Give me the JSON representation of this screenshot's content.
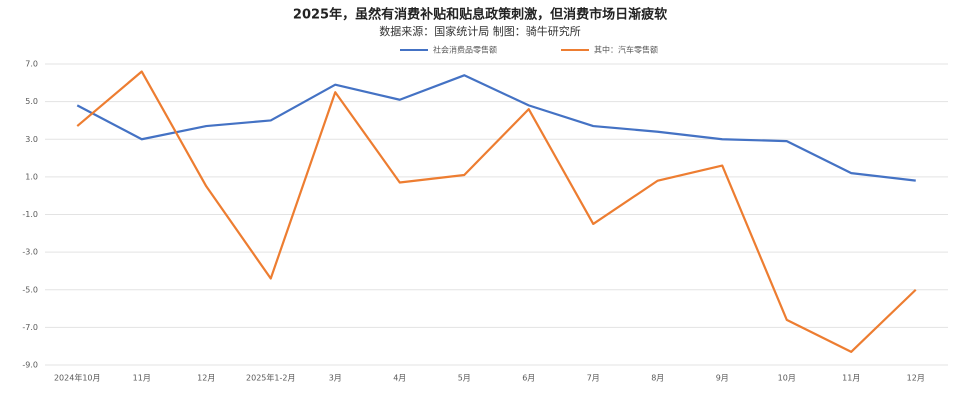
{
  "chart_data": {
    "type": "line",
    "title": "2025年，虽然有消费补贴和贴息政策刺激，但消费市场日渐疲软",
    "subtitle": "数据来源：国家统计局  制图：骑牛研究所",
    "categories": [
      "2024年10月",
      "11月",
      "12月",
      "2025年1-2月",
      "3月",
      "4月",
      "5月",
      "6月",
      "7月",
      "8月",
      "9月",
      "10月",
      "11月",
      "12月"
    ],
    "series": [
      {
        "name": "社会消费品零售额",
        "color": "#4472c4",
        "values": [
          4.8,
          3.0,
          3.7,
          4.0,
          5.9,
          5.1,
          6.4,
          4.8,
          3.7,
          3.4,
          3.0,
          2.9,
          1.2,
          0.8
        ]
      },
      {
        "name": "其中：汽车零售额",
        "color": "#ed7d31",
        "values": [
          3.7,
          6.6,
          0.5,
          -4.4,
          5.5,
          0.7,
          1.1,
          4.6,
          -1.5,
          0.8,
          1.6,
          -6.6,
          -8.3,
          -5.0
        ]
      }
    ],
    "ylim": [
      -9,
      7
    ],
    "yticks": [
      {
        "value": 7,
        "label": "7.0"
      },
      {
        "value": 5,
        "label": "5.0"
      },
      {
        "value": 3,
        "label": "3.0"
      },
      {
        "value": 1,
        "label": "1.0"
      },
      {
        "value": -1,
        "label": "-1.0"
      },
      {
        "value": -3,
        "label": "-3.0"
      },
      {
        "value": -5,
        "label": "-5.0"
      },
      {
        "value": -7,
        "label": "-7.0"
      },
      {
        "value": -9,
        "label": "-9.0"
      }
    ],
    "grid": true
  }
}
